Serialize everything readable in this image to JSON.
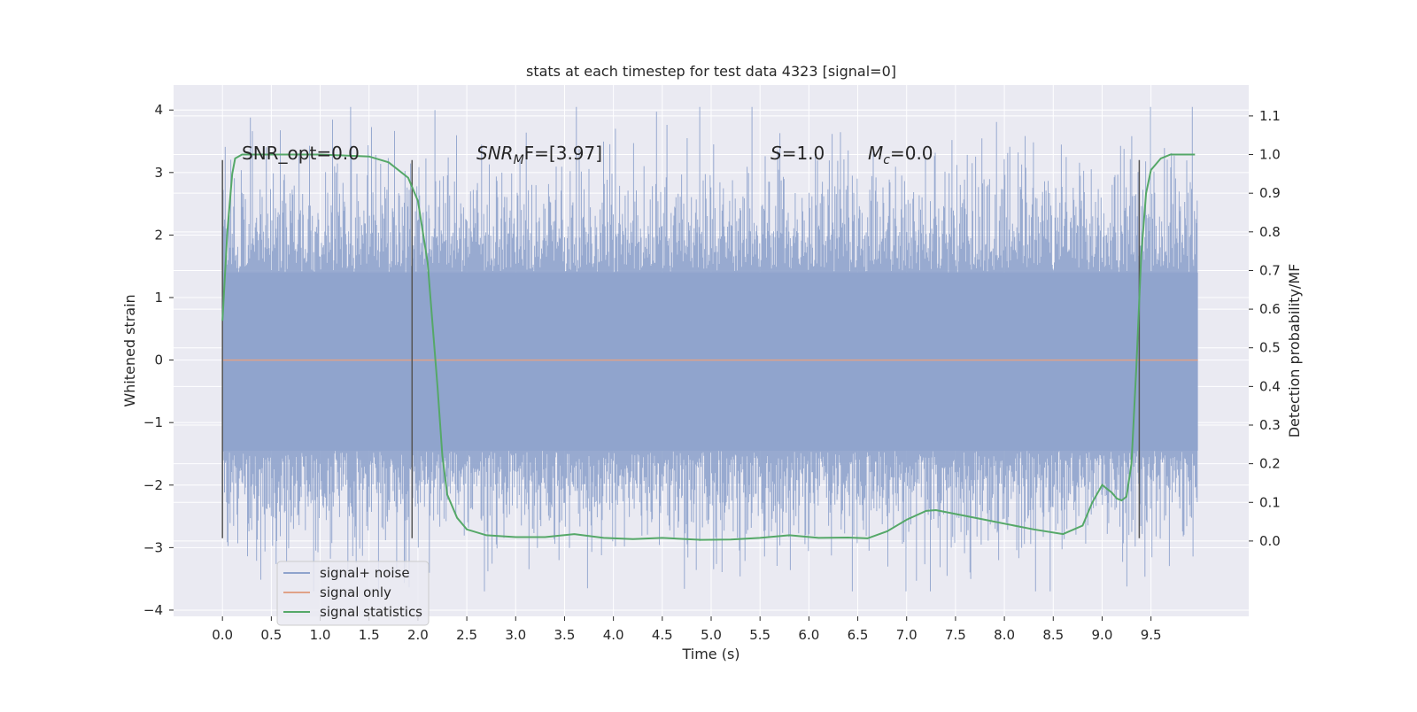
{
  "chart_data": {
    "type": "line",
    "title": "stats at each timestep for test data 4323 [signal=0]",
    "xlabel": "Time (s)",
    "ylabel": "Whitened strain",
    "y2label": "Detection probability/MF",
    "xlim": [
      -0.5,
      10.5
    ],
    "ylim": [
      -4.1,
      4.4
    ],
    "y2lim": [
      -0.195,
      1.18
    ],
    "xticks": [
      "0.0",
      "0.5",
      "1.0",
      "1.5",
      "2.0",
      "2.5",
      "3.0",
      "3.5",
      "4.0",
      "4.5",
      "5.0",
      "5.5",
      "6.0",
      "6.5",
      "7.0",
      "7.5",
      "8.0",
      "8.5",
      "9.0",
      "9.5"
    ],
    "yticks": [
      "4",
      "3",
      "2",
      "1",
      "0",
      "−1",
      "−2",
      "−3",
      "−4"
    ],
    "y2ticks": [
      "1.1",
      "1.0",
      "0.9",
      "0.8",
      "0.7",
      "0.6",
      "0.5",
      "0.4",
      "0.3",
      "0.2",
      "0.1",
      "0.0"
    ],
    "grid": true,
    "legend_position": "lower-left",
    "series": [
      {
        "name": "signal+ noise",
        "color": "#8fa3cc",
        "style": "dense noise, approx ±1.4 core, peaks to ±4, t 0–10 s"
      },
      {
        "name": "signal only",
        "color": "#e0a287",
        "values_constant": 0
      },
      {
        "name": "signal statistics",
        "color": "#55a868",
        "axis": "right",
        "x": [
          0.0,
          0.05,
          0.1,
          0.13,
          0.2,
          0.4,
          1.0,
          1.5,
          1.7,
          1.9,
          2.0,
          2.1,
          2.2,
          2.25,
          2.3,
          2.4,
          2.5,
          2.7,
          3.0,
          3.3,
          3.6,
          3.9,
          4.2,
          4.5,
          4.9,
          5.2,
          5.5,
          5.8,
          6.1,
          6.4,
          6.6,
          6.8,
          7.0,
          7.2,
          7.3,
          7.5,
          7.8,
          8.0,
          8.3,
          8.6,
          8.8,
          8.9,
          9.0,
          9.1,
          9.15,
          9.2,
          9.25,
          9.3,
          9.35,
          9.4,
          9.45,
          9.5,
          9.6,
          9.7,
          9.95
        ],
        "values": [
          0.57,
          0.8,
          0.95,
          0.99,
          1.0,
          1.0,
          1.0,
          0.995,
          0.98,
          0.94,
          0.88,
          0.72,
          0.4,
          0.22,
          0.12,
          0.06,
          0.03,
          0.015,
          0.01,
          0.01,
          0.018,
          0.008,
          0.005,
          0.008,
          0.003,
          0.004,
          0.008,
          0.015,
          0.008,
          0.009,
          0.007,
          0.025,
          0.055,
          0.078,
          0.08,
          0.07,
          0.055,
          0.045,
          0.03,
          0.018,
          0.04,
          0.1,
          0.145,
          0.125,
          0.11,
          0.105,
          0.115,
          0.2,
          0.45,
          0.74,
          0.9,
          0.96,
          0.99,
          1.0,
          1.0
        ]
      }
    ],
    "vlines": [
      0.0,
      1.94,
      9.38
    ],
    "annotations": [
      {
        "text": "SNR_opt=0.0"
      },
      {
        "prefix": "SNR",
        "sub": "M",
        "suffix": "F=[3.97]"
      },
      {
        "prefix": "S",
        "suffix": "=1.0"
      },
      {
        "prefix": "M",
        "sub": "c",
        "suffix": "=0.0"
      }
    ]
  }
}
